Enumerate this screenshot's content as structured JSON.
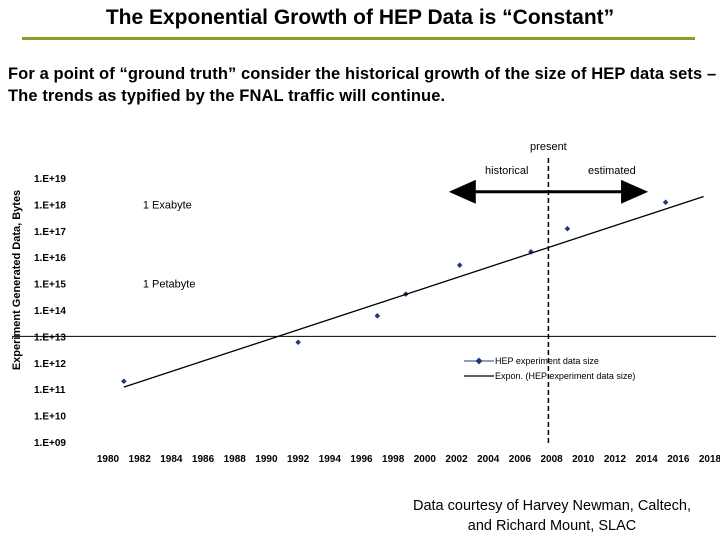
{
  "slide": {
    "title": "The Exponential Growth of HEP Data is “Constant”",
    "intro": "For a point of “ground truth” consider the historical growth of the size of HEP data sets – The trends as typified by the FNAL traffic will continue.",
    "credit_line1": "Data courtesy of Harvey Newman, Caltech,",
    "credit_line2": "and Richard Mount, SLAC",
    "accent_color": "#8e9a27"
  },
  "chart_data": {
    "type": "scatter",
    "title": "",
    "xlabel": "",
    "ylabel": "Experiment Generated Data, Bytes",
    "x_range": [
      1980,
      2018
    ],
    "y_scale": "log",
    "y_exponent_range": [
      9,
      19
    ],
    "x_tick_labels": [
      "1980",
      "1982",
      "1984",
      "1986",
      "1988",
      "1990",
      "1992",
      "1994",
      "1996",
      "1998",
      "2000",
      "2002",
      "2004",
      "2006",
      "2008",
      "2010",
      "2012",
      "2014",
      "2016",
      "2018"
    ],
    "y_tick_labels": [
      "1.E+19",
      "1.E+18",
      "1.E+17",
      "1.E+16",
      "1.E+15",
      "1.E+14",
      "1.E+13",
      "1.E+12",
      "1.E+11",
      "1.E+10",
      "1.E+09"
    ],
    "series": [
      {
        "name": "HEP experiment data size",
        "marker": "diamond",
        "color": "#1f3a7a",
        "points": [
          {
            "x": 1981.0,
            "y": "2e11"
          },
          {
            "x": 1992.0,
            "y": "6e12"
          },
          {
            "x": 1997.0,
            "y": "6e13"
          },
          {
            "x": 1998.8,
            "y": "4e14"
          },
          {
            "x": 2002.2,
            "y": "5e15"
          },
          {
            "x": 2006.7,
            "y": "1.6e16"
          },
          {
            "x": 2009.0,
            "y": "1.2e17"
          },
          {
            "x": 2015.2,
            "y": "1.2e18"
          }
        ]
      },
      {
        "name": "Expon. (HEP experiment data size)",
        "type": "trendline",
        "color": "#000000",
        "from": {
          "x": 1981.0,
          "y": "1.2e11"
        },
        "to": {
          "x": 2017.6,
          "y": "2e18"
        }
      }
    ],
    "reference_lines": [
      {
        "kind": "horizontal",
        "y": "1e13",
        "style": "solid"
      },
      {
        "kind": "vertical",
        "x": 2007.8,
        "style": "dashed",
        "label": "present"
      }
    ],
    "annotations": [
      {
        "text": "1 Exabyte",
        "x": 1982.2,
        "y": "1e18"
      },
      {
        "text": "1 Petabyte",
        "x": 1982.2,
        "y": "1e15"
      },
      {
        "text": "historical",
        "x": 2003.8,
        "y": "2e19"
      },
      {
        "text": "estimated",
        "x": 2010.3,
        "y": "2e19"
      }
    ],
    "range_arrow": {
      "x_from": 2001.7,
      "x_to": 2013.9,
      "y": "3e18"
    },
    "legend_position": "lower-right",
    "grid": false
  }
}
